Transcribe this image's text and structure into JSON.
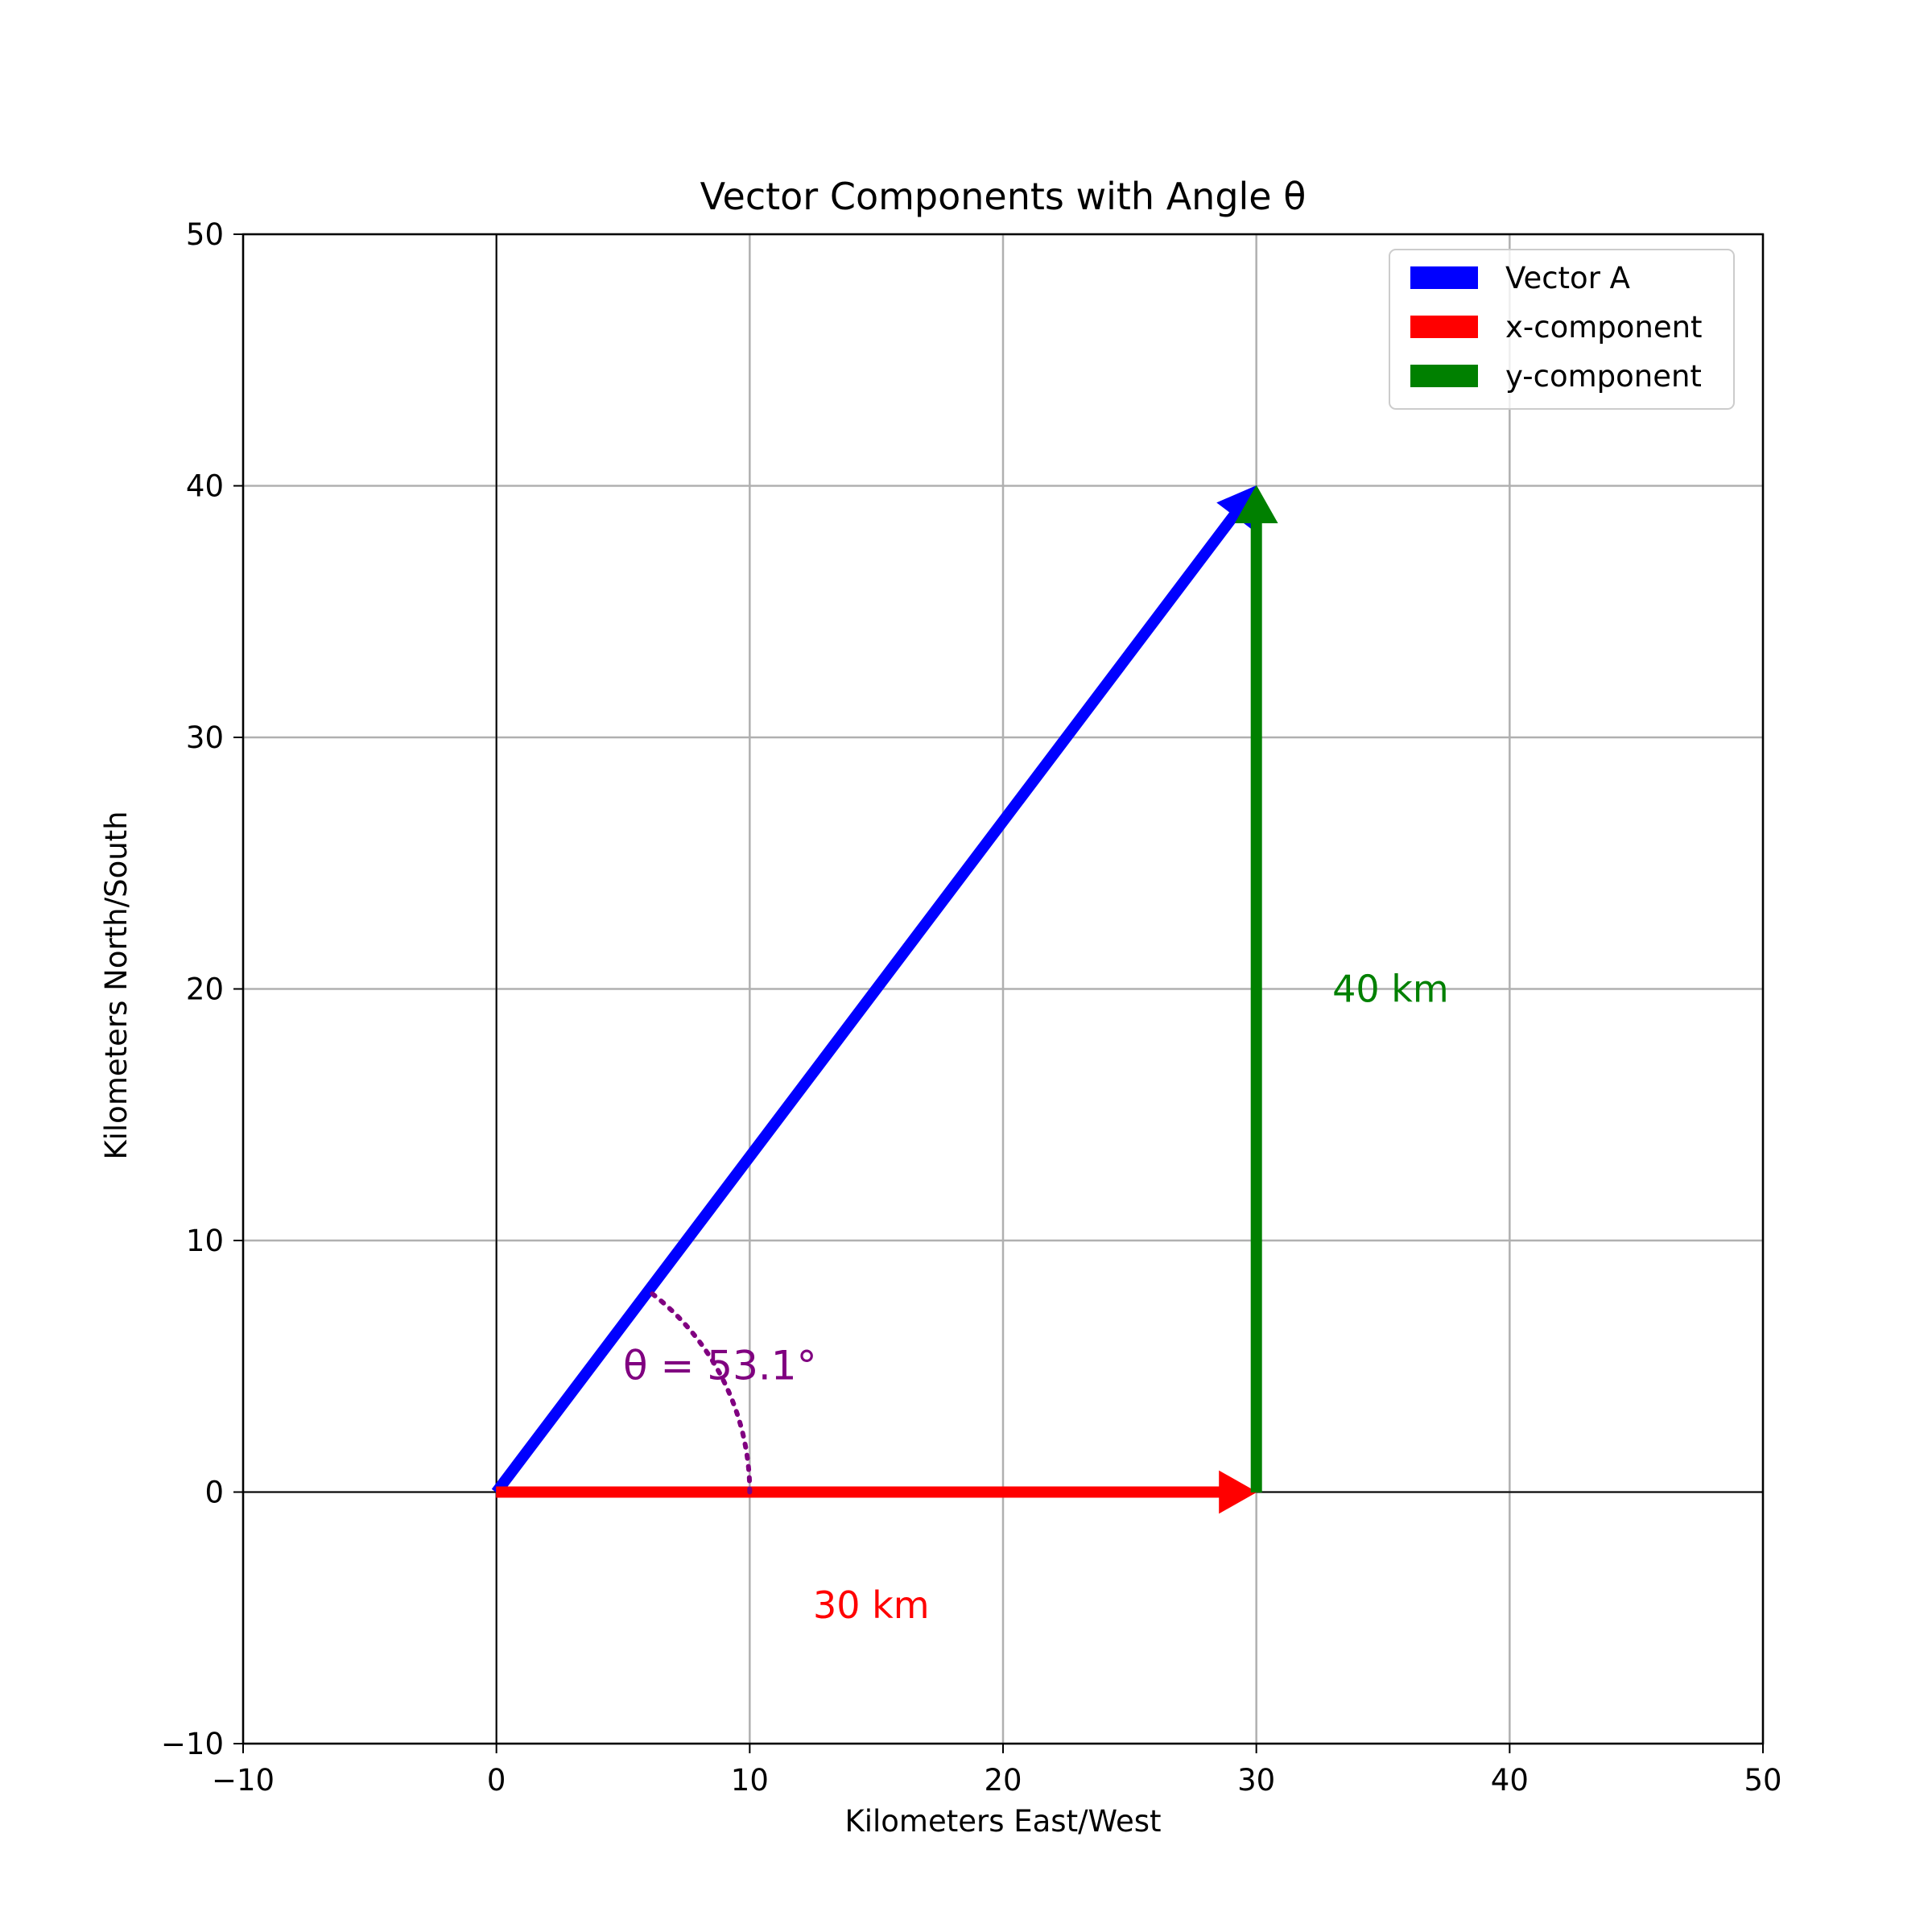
{
  "chart_data": {
    "type": "vector",
    "title": "Vector Components with Angle θ",
    "xlabel": "Kilometers East/West",
    "ylabel": "Kilometers North/South",
    "xlim": [
      -10,
      50
    ],
    "ylim": [
      -10,
      50
    ],
    "xticks": [
      -10,
      0,
      10,
      20,
      30,
      40,
      50
    ],
    "yticks": [
      -10,
      0,
      10,
      20,
      30,
      40,
      50
    ],
    "xtick_labels": [
      "−10",
      "0",
      "10",
      "20",
      "30",
      "40",
      "50"
    ],
    "ytick_labels": [
      "−10",
      "0",
      "10",
      "20",
      "30",
      "40",
      "50"
    ],
    "grid": true,
    "legend_position": "top-right",
    "series": [
      {
        "name": "Vector A",
        "color": "#0000ff",
        "start": [
          0,
          0
        ],
        "end": [
          30,
          40
        ]
      },
      {
        "name": "x-component",
        "color": "#ff0000",
        "start": [
          0,
          0
        ],
        "end": [
          30,
          0
        ]
      },
      {
        "name": "y-component",
        "color": "#008000",
        "start": [
          30,
          0
        ],
        "end": [
          30,
          40
        ]
      }
    ],
    "angle_arc": {
      "center": [
        0,
        0
      ],
      "radius": 10,
      "degrees": 53.1,
      "color": "#800080"
    },
    "annotations": [
      {
        "text": "θ = 53.1°",
        "x": 5,
        "y": 5,
        "color": "#800080"
      },
      {
        "text": "40 km",
        "x": 33,
        "y": 20,
        "color": "#008000"
      },
      {
        "text": "30 km",
        "x": 12.5,
        "y": -4.5,
        "color": "#ff0000"
      }
    ]
  }
}
